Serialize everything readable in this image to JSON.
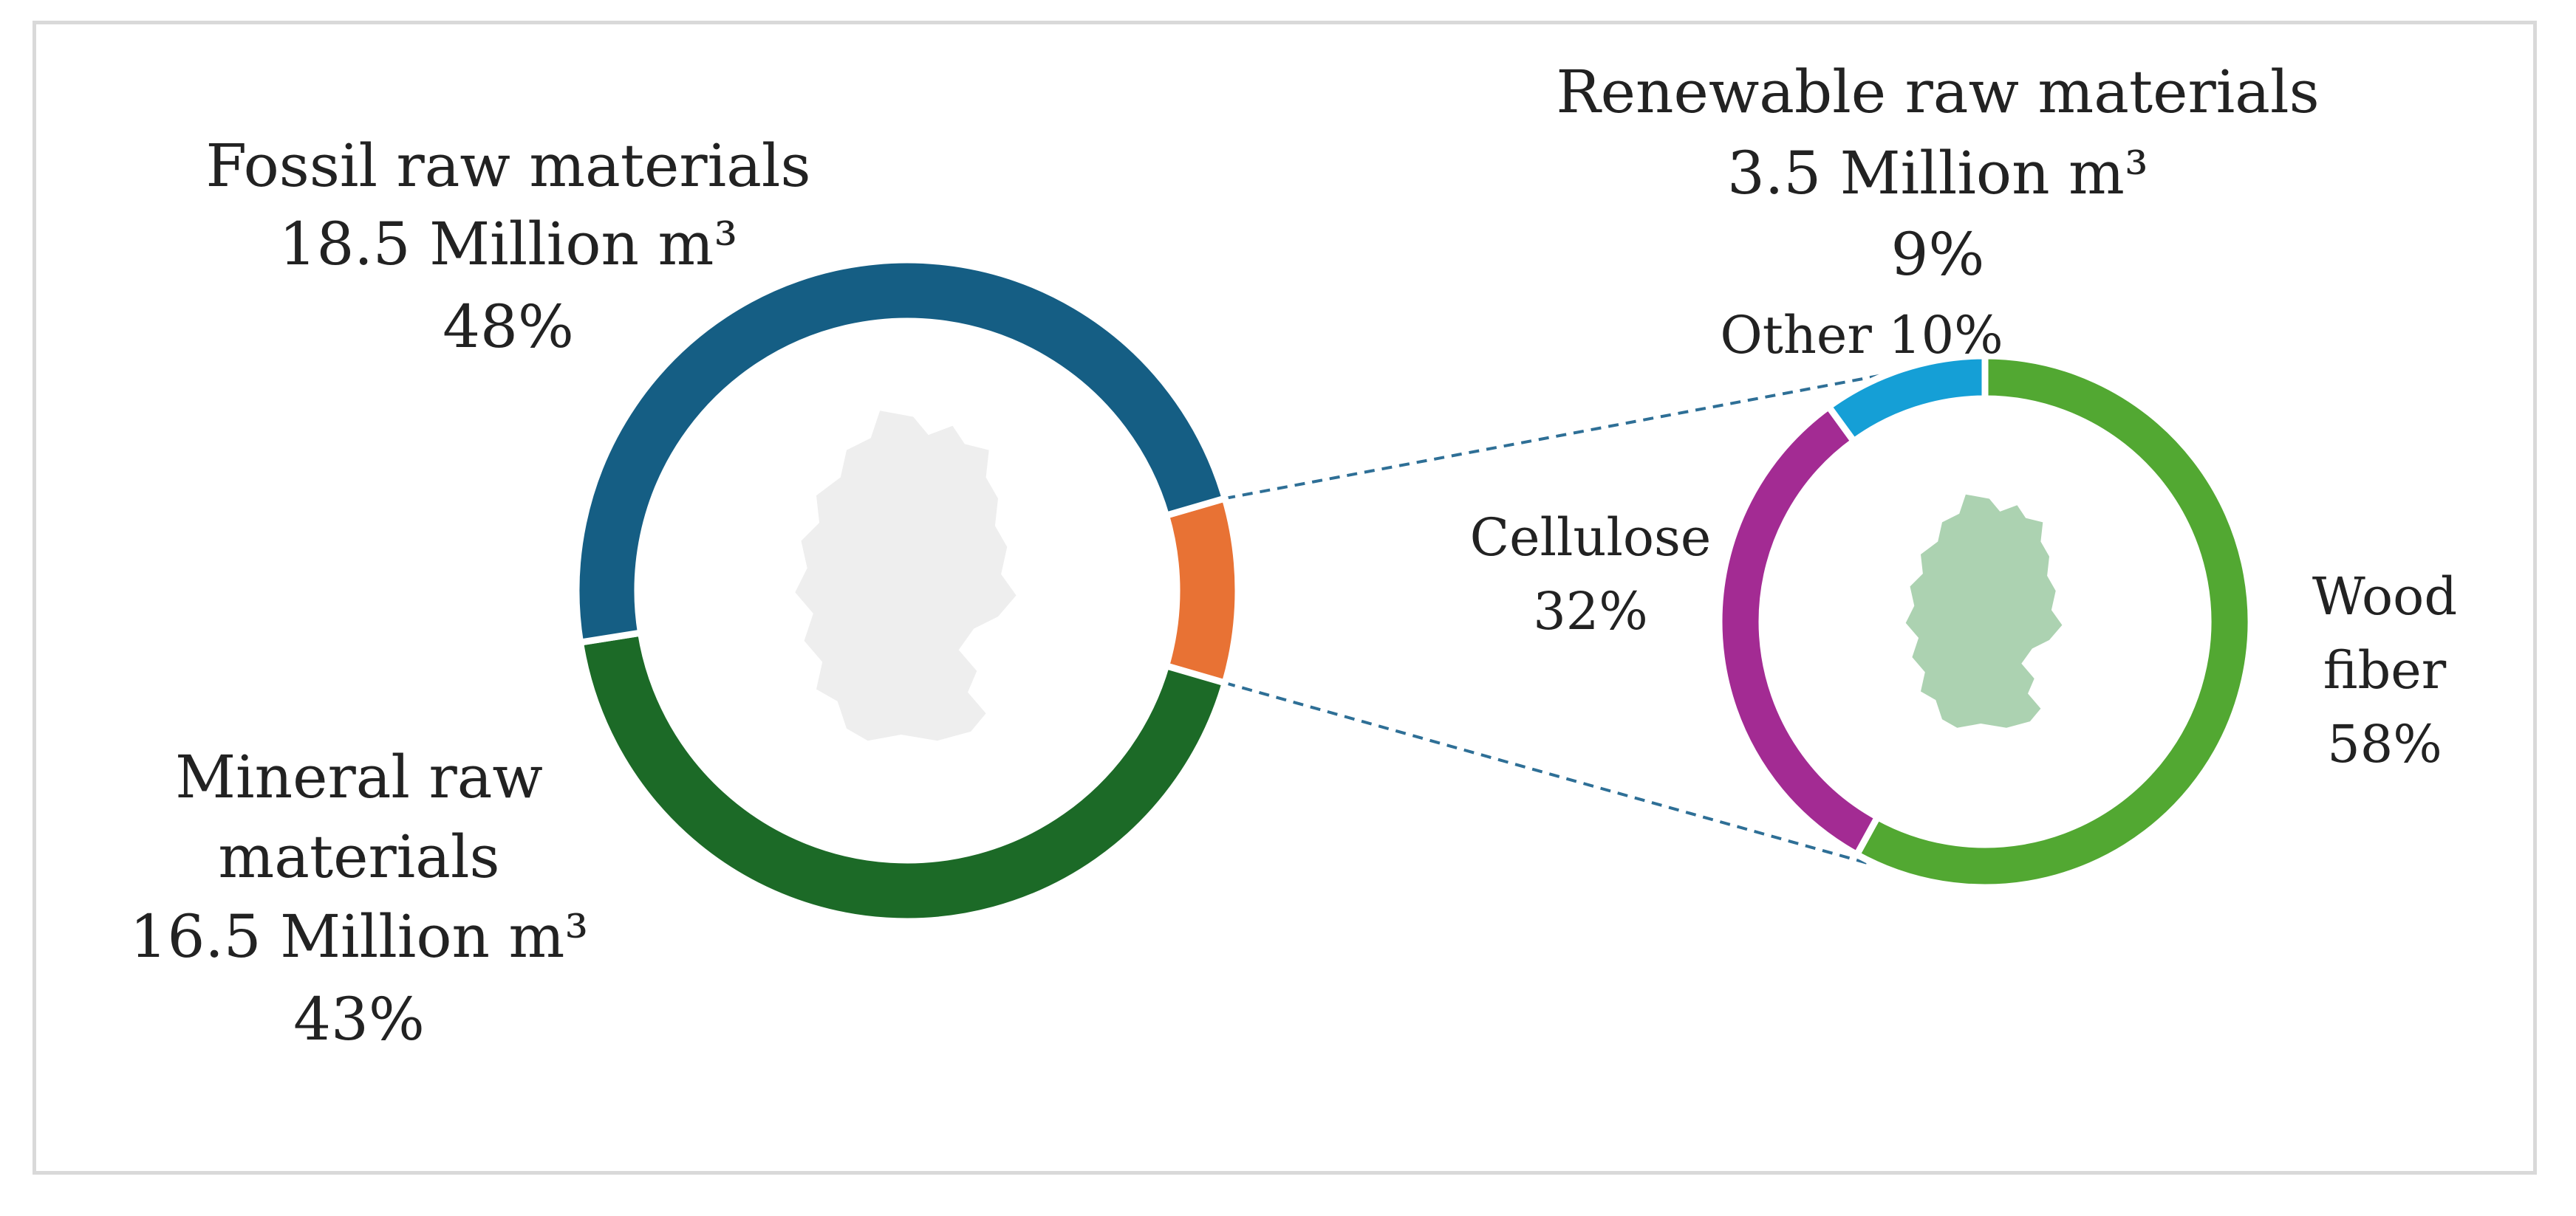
{
  "chart_data": [
    {
      "type": "pie",
      "subtype": "donut",
      "slices": [
        {
          "name": "Fossil raw materials",
          "amount": "18.5 Million m³",
          "percent": "48%",
          "value": 48,
          "color": "#155e84"
        },
        {
          "name": "Renewable raw materials",
          "amount": "3.5 Million m³",
          "percent": "9%",
          "value": 9,
          "color": "#e87234"
        },
        {
          "name": "Mineral raw materials",
          "amount": "16.5 Million m³",
          "percent": "43%",
          "value": 43,
          "color": "#1c6a27"
        }
      ],
      "labels": {
        "fossil": [
          "Fossil raw materials",
          "18.5 Million m³",
          "48%"
        ],
        "mineral": [
          "Mineral raw",
          "materials",
          "16.5 Million m³",
          "43%"
        ],
        "renewable": [
          "Renewable raw materials",
          "3.5 Million m³",
          "9%"
        ]
      },
      "center_icon": "germany-map-icon",
      "center_icon_color": "#eeeeee"
    },
    {
      "type": "pie",
      "subtype": "donut",
      "slices": [
        {
          "name": "Wood fiber",
          "percent": "58%",
          "value": 58,
          "color": "#52a832"
        },
        {
          "name": "Cellulose",
          "percent": "32%",
          "value": 32,
          "color": "#a32b93"
        },
        {
          "name": "Other",
          "percent": "10%",
          "value": 10,
          "color": "#159fd6"
        }
      ],
      "labels": {
        "wood": [
          "Wood",
          "fiber",
          "58%"
        ],
        "cellulose": [
          "Cellulose",
          "32%"
        ],
        "other": [
          "Other 10%"
        ]
      },
      "center_icon": "germany-map-icon",
      "center_icon_color": "#acd2b1"
    }
  ],
  "connector_color": "#2e6f96"
}
